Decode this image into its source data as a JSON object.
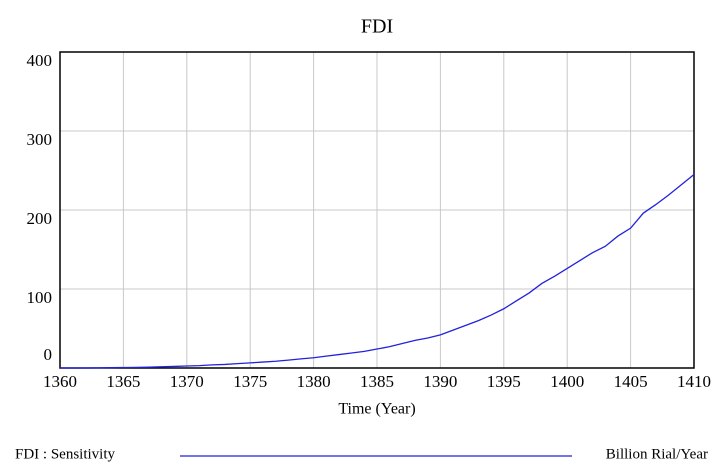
{
  "chart_data": {
    "type": "line",
    "title": "FDI",
    "x_label": "Time (Year)",
    "x": [
      1360,
      1361,
      1362,
      1363,
      1364,
      1365,
      1366,
      1367,
      1368,
      1369,
      1370,
      1371,
      1372,
      1373,
      1374,
      1375,
      1376,
      1377,
      1378,
      1379,
      1380,
      1381,
      1382,
      1383,
      1384,
      1385,
      1386,
      1387,
      1388,
      1389,
      1390,
      1391,
      1392,
      1393,
      1394,
      1395,
      1396,
      1397,
      1398,
      1399,
      1400,
      1401,
      1402,
      1403,
      1404,
      1405,
      1406,
      1407,
      1408,
      1409,
      1410
    ],
    "series": [
      {
        "name": "FDI : Sensitivity",
        "units": "Billion Rial/Year",
        "color": "#2222dd",
        "values": [
          0,
          0,
          0,
          0.2,
          0.4,
          0.6,
          0.8,
          1,
          1.5,
          2,
          2.5,
          3,
          4,
          4.5,
          5.5,
          6.5,
          7.5,
          8.5,
          10,
          11.5,
          13,
          15,
          17,
          19,
          21,
          24,
          27,
          31,
          35,
          38,
          42,
          48,
          54,
          60,
          67,
          75,
          85,
          95,
          107,
          116,
          126,
          136,
          146,
          154,
          167,
          177,
          196,
          207,
          219,
          232,
          245
        ]
      }
    ],
    "xlim": [
      1360,
      1410
    ],
    "xticks": [
      1360,
      1365,
      1370,
      1375,
      1380,
      1385,
      1390,
      1395,
      1400,
      1405,
      1410
    ],
    "ylim": [
      0,
      400
    ],
    "yticks": [
      0,
      100,
      200,
      300,
      400
    ],
    "grid": true
  }
}
